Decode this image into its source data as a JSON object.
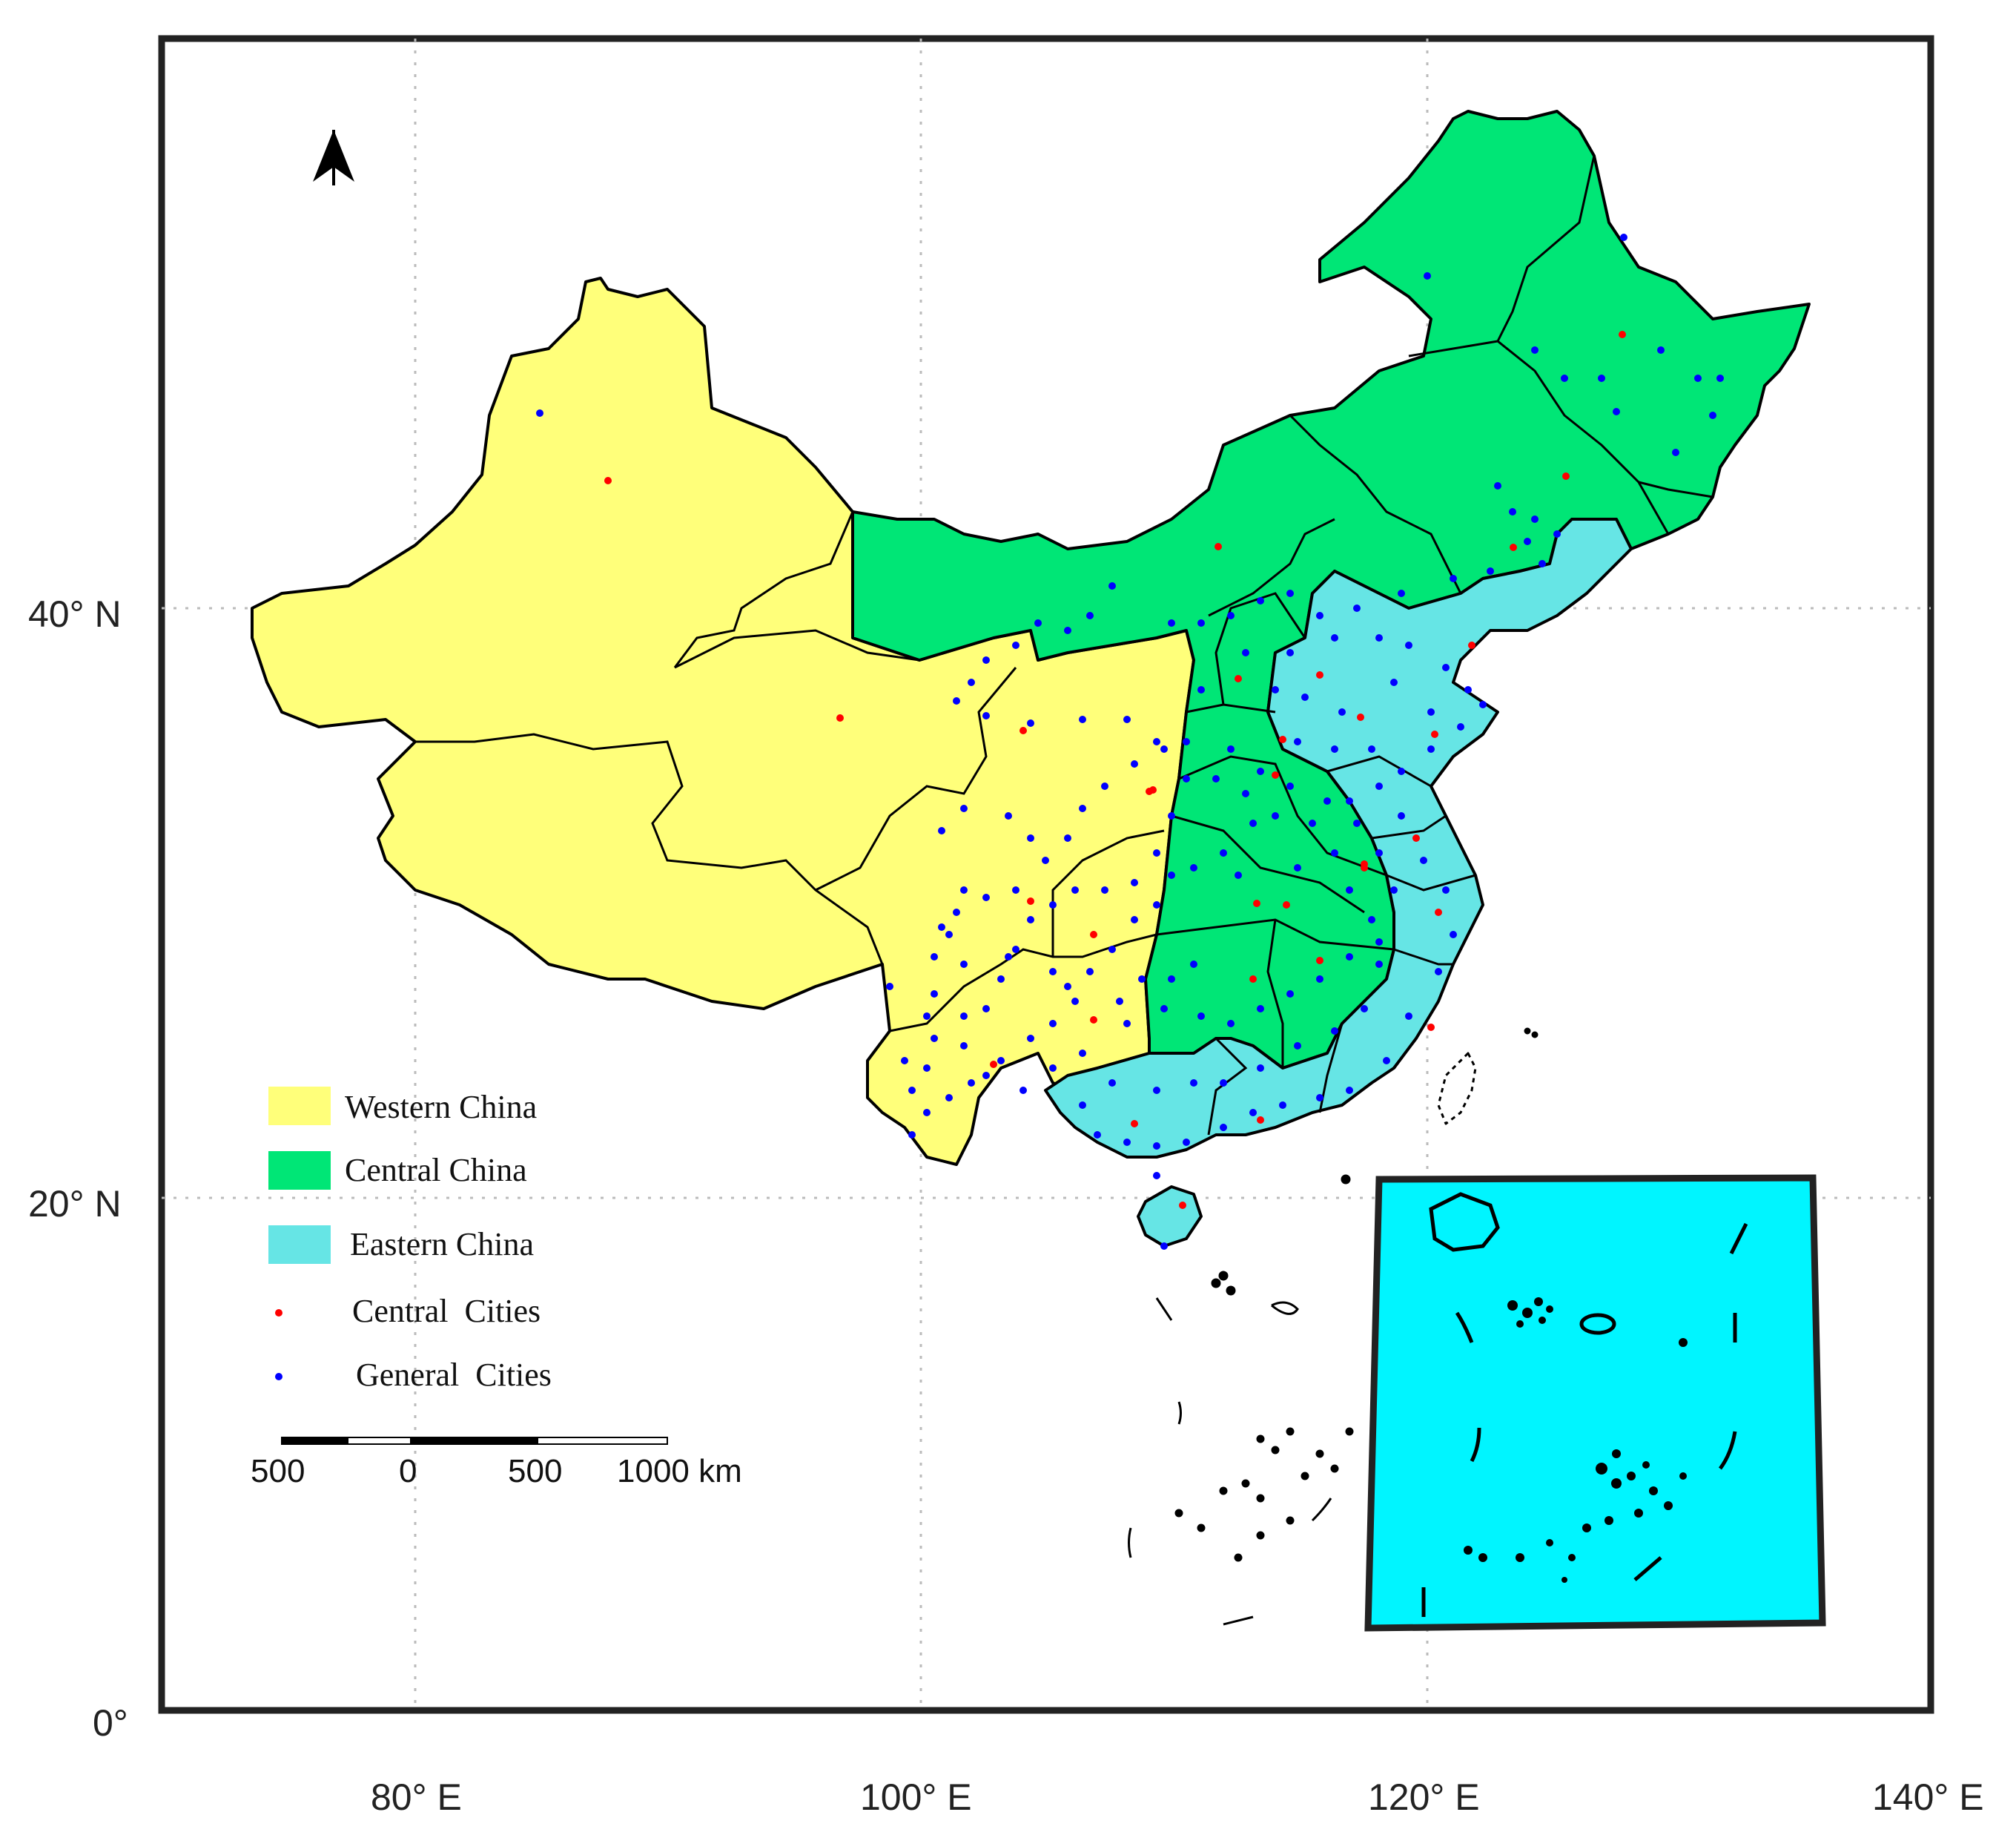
{
  "map": {
    "lat_labels": [
      "40° N",
      "20° N",
      "0°"
    ],
    "lon_labels": [
      "80° E",
      "100° E",
      "120° E",
      "140° E"
    ],
    "north_arrow_icon": "north-arrow-icon"
  },
  "legend": {
    "items": [
      {
        "label": "Western China",
        "color": "#ffff7a",
        "kind": "swatch"
      },
      {
        "label": "Central China",
        "color": "#00e676",
        "kind": "swatch"
      },
      {
        "label": "Eastern China",
        "color": "#66e5e5",
        "kind": "swatch"
      },
      {
        "label": "Central  Cities",
        "color": "#ff0000",
        "kind": "dot"
      },
      {
        "label": "General  Cities",
        "color": "#0000ff",
        "kind": "dot"
      }
    ]
  },
  "scale_bar": {
    "labels": [
      "500",
      "0",
      "500",
      "1000 km"
    ]
  },
  "colors": {
    "western": "#ffff7a",
    "central": "#00e676",
    "eastern": "#66e5e5",
    "inset": "#00f5ff",
    "central_city": "#ff0000",
    "general_city": "#0000ff"
  }
}
